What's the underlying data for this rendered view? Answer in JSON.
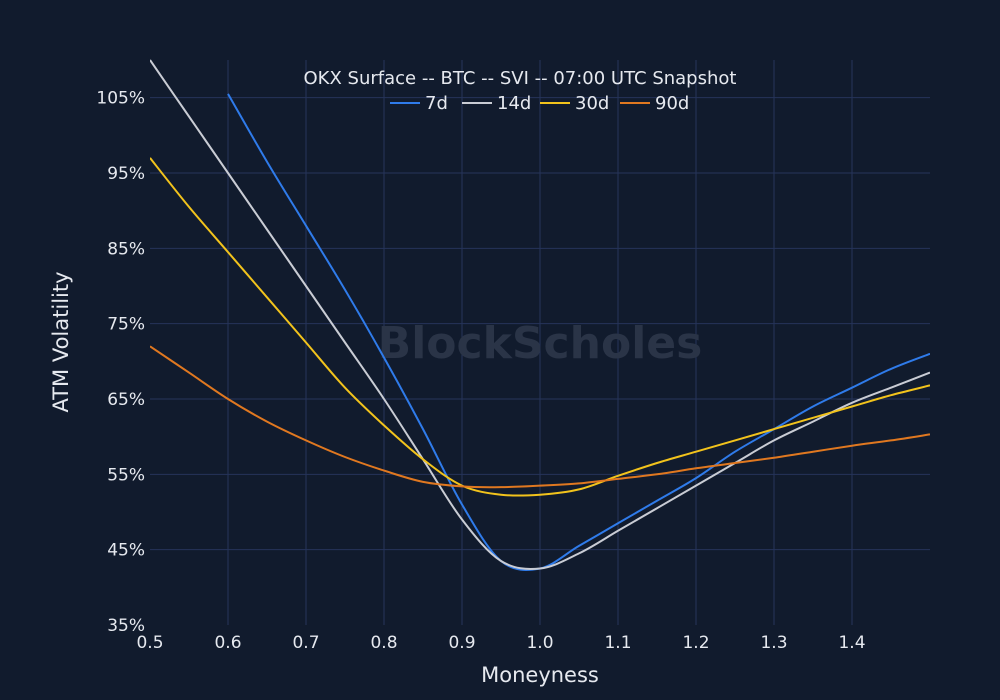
{
  "watermark": "BlockScholes",
  "chart_data": {
    "type": "line",
    "title": "OKX Surface -- BTC -- SVI -- 07:00 UTC Snapshot",
    "xlabel": "Moneyness",
    "ylabel": "ATM Volatility",
    "xlim": [
      0.5,
      1.5
    ],
    "ylim": [
      35,
      110
    ],
    "x_ticks": [
      0.5,
      0.6,
      0.7,
      0.8,
      0.9,
      1.0,
      1.1,
      1.2,
      1.3,
      1.4
    ],
    "x_tick_labels": [
      "0.5",
      "0.6",
      "0.7",
      "0.8",
      "0.9",
      "1.0",
      "1.1",
      "1.2",
      "1.3",
      "1.4"
    ],
    "y_ticks": [
      35,
      45,
      55,
      65,
      75,
      85,
      95,
      105
    ],
    "y_tick_labels": [
      "35%",
      "45%",
      "55%",
      "65%",
      "75%",
      "85%",
      "95%",
      "105%"
    ],
    "grid": true,
    "legend_position": "top-center",
    "x": [
      0.5,
      0.55,
      0.6,
      0.65,
      0.7,
      0.75,
      0.8,
      0.85,
      0.9,
      0.95,
      1.0,
      1.05,
      1.1,
      1.15,
      1.2,
      1.25,
      1.3,
      1.35,
      1.4,
      1.45,
      1.5
    ],
    "series": [
      {
        "name": "7d",
        "color": "#2f7bea",
        "values": [
          null,
          null,
          105.5,
          96.5,
          88,
          79.5,
          70.5,
          61,
          51,
          43.5,
          42.5,
          45.5,
          48.5,
          51.5,
          54.5,
          58,
          61,
          64,
          66.5,
          69,
          71
        ]
      },
      {
        "name": "14d",
        "color": "#c9ccd4",
        "values": [
          110,
          102.5,
          95,
          87.5,
          80,
          72.5,
          65,
          57,
          49,
          43.5,
          42.5,
          44.5,
          47.5,
          50.5,
          53.5,
          56.5,
          59.5,
          62,
          64.5,
          66.5,
          68.5
        ]
      },
      {
        "name": "30d",
        "color": "#f2c31c",
        "values": [
          97,
          90.5,
          84.5,
          78.5,
          72.5,
          66.5,
          61.5,
          57,
          53.5,
          52.3,
          52.3,
          53,
          54.8,
          56.5,
          58,
          59.5,
          61,
          62.5,
          64,
          65.5,
          66.8
        ]
      },
      {
        "name": "90d",
        "color": "#e07820",
        "values": [
          72,
          68.5,
          65,
          62,
          59.5,
          57.3,
          55.5,
          54,
          53.4,
          53.3,
          53.5,
          53.8,
          54.4,
          55,
          55.8,
          56.5,
          57.2,
          58,
          58.8,
          59.5,
          60.3
        ]
      }
    ]
  }
}
